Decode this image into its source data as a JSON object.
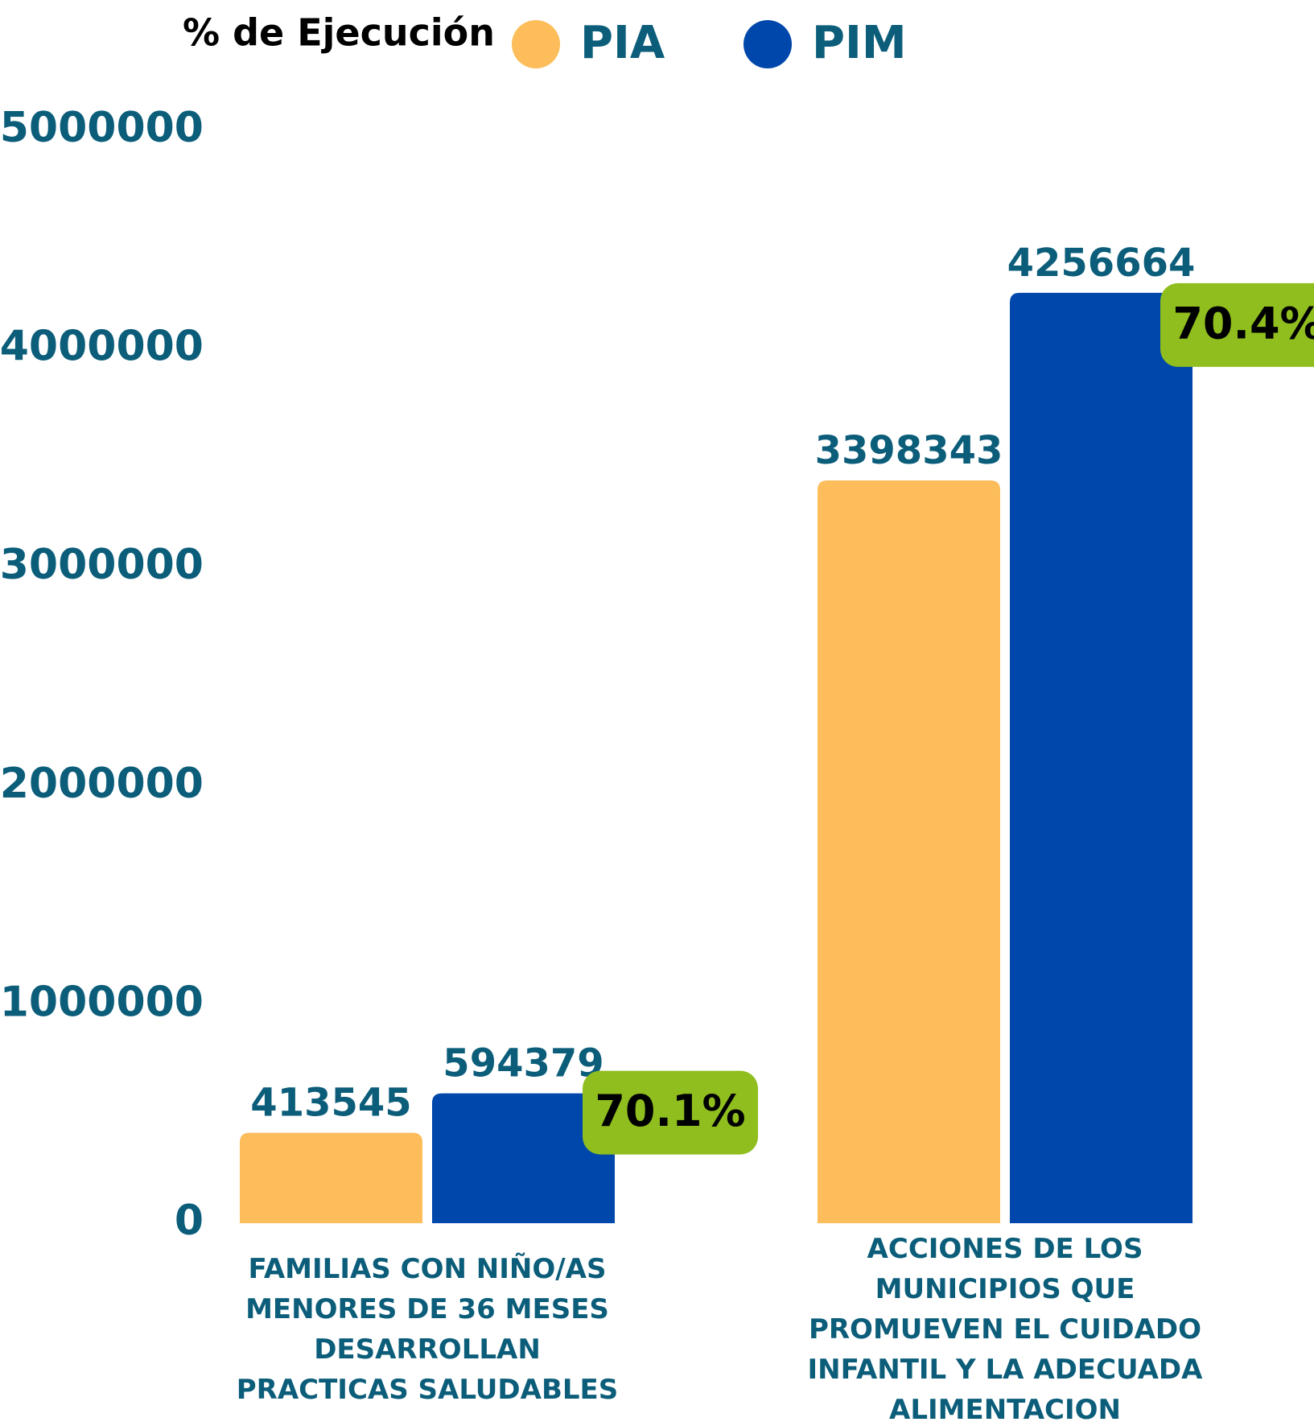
{
  "chart_data": {
    "type": "bar",
    "title": "% de Ejecución",
    "categories": [
      "FAMILIAS CON NIÑO/AS MENORES DE 36 MESES DESARROLLAN PRACTICAS SALUDABLES",
      "ACCIONES DE LOS MUNICIPIOS QUE PROMUEVEN EL CUIDADO INFANTIL Y LA ADECUADA ALIMENTACION"
    ],
    "series": [
      {
        "name": "PIA",
        "color": "#fdbd5a",
        "values": [
          413545,
          3398343
        ]
      },
      {
        "name": "PIM",
        "color": "#0047ab",
        "values": [
          594379,
          4256664
        ]
      }
    ],
    "annotations": [
      "70.1%",
      "70.4%"
    ],
    "annotation_color": "#8fbe1e",
    "ylim": [
      0,
      5000000
    ],
    "yticks": [
      0,
      1000000,
      2000000,
      3000000,
      4000000,
      5000000
    ],
    "grid": false
  }
}
